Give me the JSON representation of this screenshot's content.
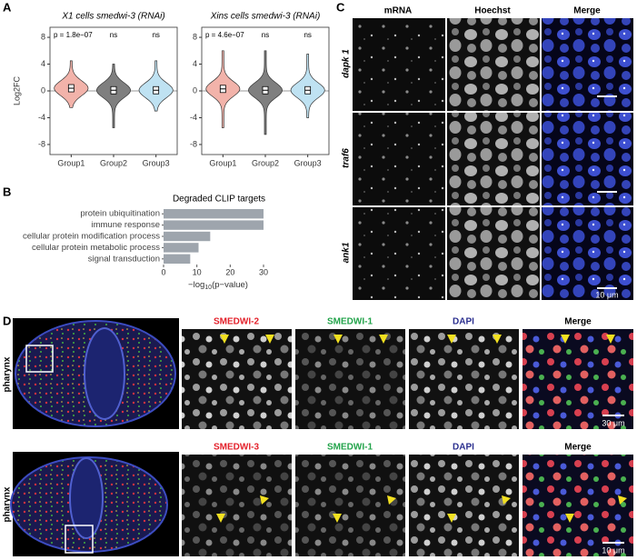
{
  "panel_labels": [
    "A",
    "B",
    "C",
    "D"
  ],
  "chart_data": [
    {
      "type": "violin",
      "title": "X1 cells smedwi-3 (RNAi)",
      "ylabel": "Log2FC",
      "categories": [
        "Group1",
        "Group2",
        "Group3"
      ],
      "colors": [
        "#f2b3aa",
        "#7f7f7f",
        "#bfe2f2"
      ],
      "ylim": [
        -9.5,
        9.5
      ],
      "yticks": [
        -8,
        -4,
        0,
        4,
        8
      ],
      "medians": [
        0.4,
        0.1,
        0.1
      ],
      "mins": [
        -2.5,
        -5.5,
        -3
      ],
      "maxs": [
        4.5,
        4,
        4.5
      ],
      "annotations": [
        "p = 1.8e−07",
        "ns",
        "ns"
      ]
    },
    {
      "type": "violin",
      "title": "Xins cells smedwi-3 (RNAi)",
      "categories": [
        "Group1",
        "Group2",
        "Group3"
      ],
      "colors": [
        "#f2b3aa",
        "#7f7f7f",
        "#bfe2f2"
      ],
      "ylim": [
        -9.5,
        9.5
      ],
      "yticks": [
        -8,
        -4,
        0,
        4,
        8
      ],
      "medians": [
        0.3,
        0.1,
        0.1
      ],
      "mins": [
        -5.5,
        -6.5,
        -4
      ],
      "maxs": [
        6,
        6,
        5.5
      ],
      "annotations": [
        "p = 4.6e−07",
        "ns",
        "ns"
      ]
    },
    {
      "type": "hbar",
      "title": "Degraded CLIP targets",
      "categories": [
        "protein ubiquitination",
        "immune response",
        "cellular protein modification process",
        "cellular protein metabolic process",
        "signal transduction"
      ],
      "values": [
        30,
        30,
        14,
        10.5,
        8
      ],
      "color": "#9ea5ad",
      "xlim": [
        0,
        33
      ],
      "xticks": [
        0,
        10,
        20,
        30
      ],
      "xlabel": [
        "−log",
        "10",
        "(p−value)"
      ]
    }
  ],
  "panel_c": {
    "columns": [
      "mRNA",
      "Hoechst",
      "Merge"
    ],
    "rows": [
      "dapk 1",
      "traf6",
      "ank1"
    ],
    "scale_bar": "10 μm"
  },
  "panel_d": {
    "rows": [
      {
        "label": "pharynx",
        "columns": [
          "SMEDWI-2",
          "SMEDWI-1",
          "DAPI",
          "Merge"
        ],
        "scale_bar": "30 μm"
      },
      {
        "label": "pharynx",
        "columns": [
          "SMEDWI-3",
          "SMEDWI-1",
          "DAPI",
          "Merge"
        ],
        "scale_bar": "10 μm"
      }
    ]
  }
}
